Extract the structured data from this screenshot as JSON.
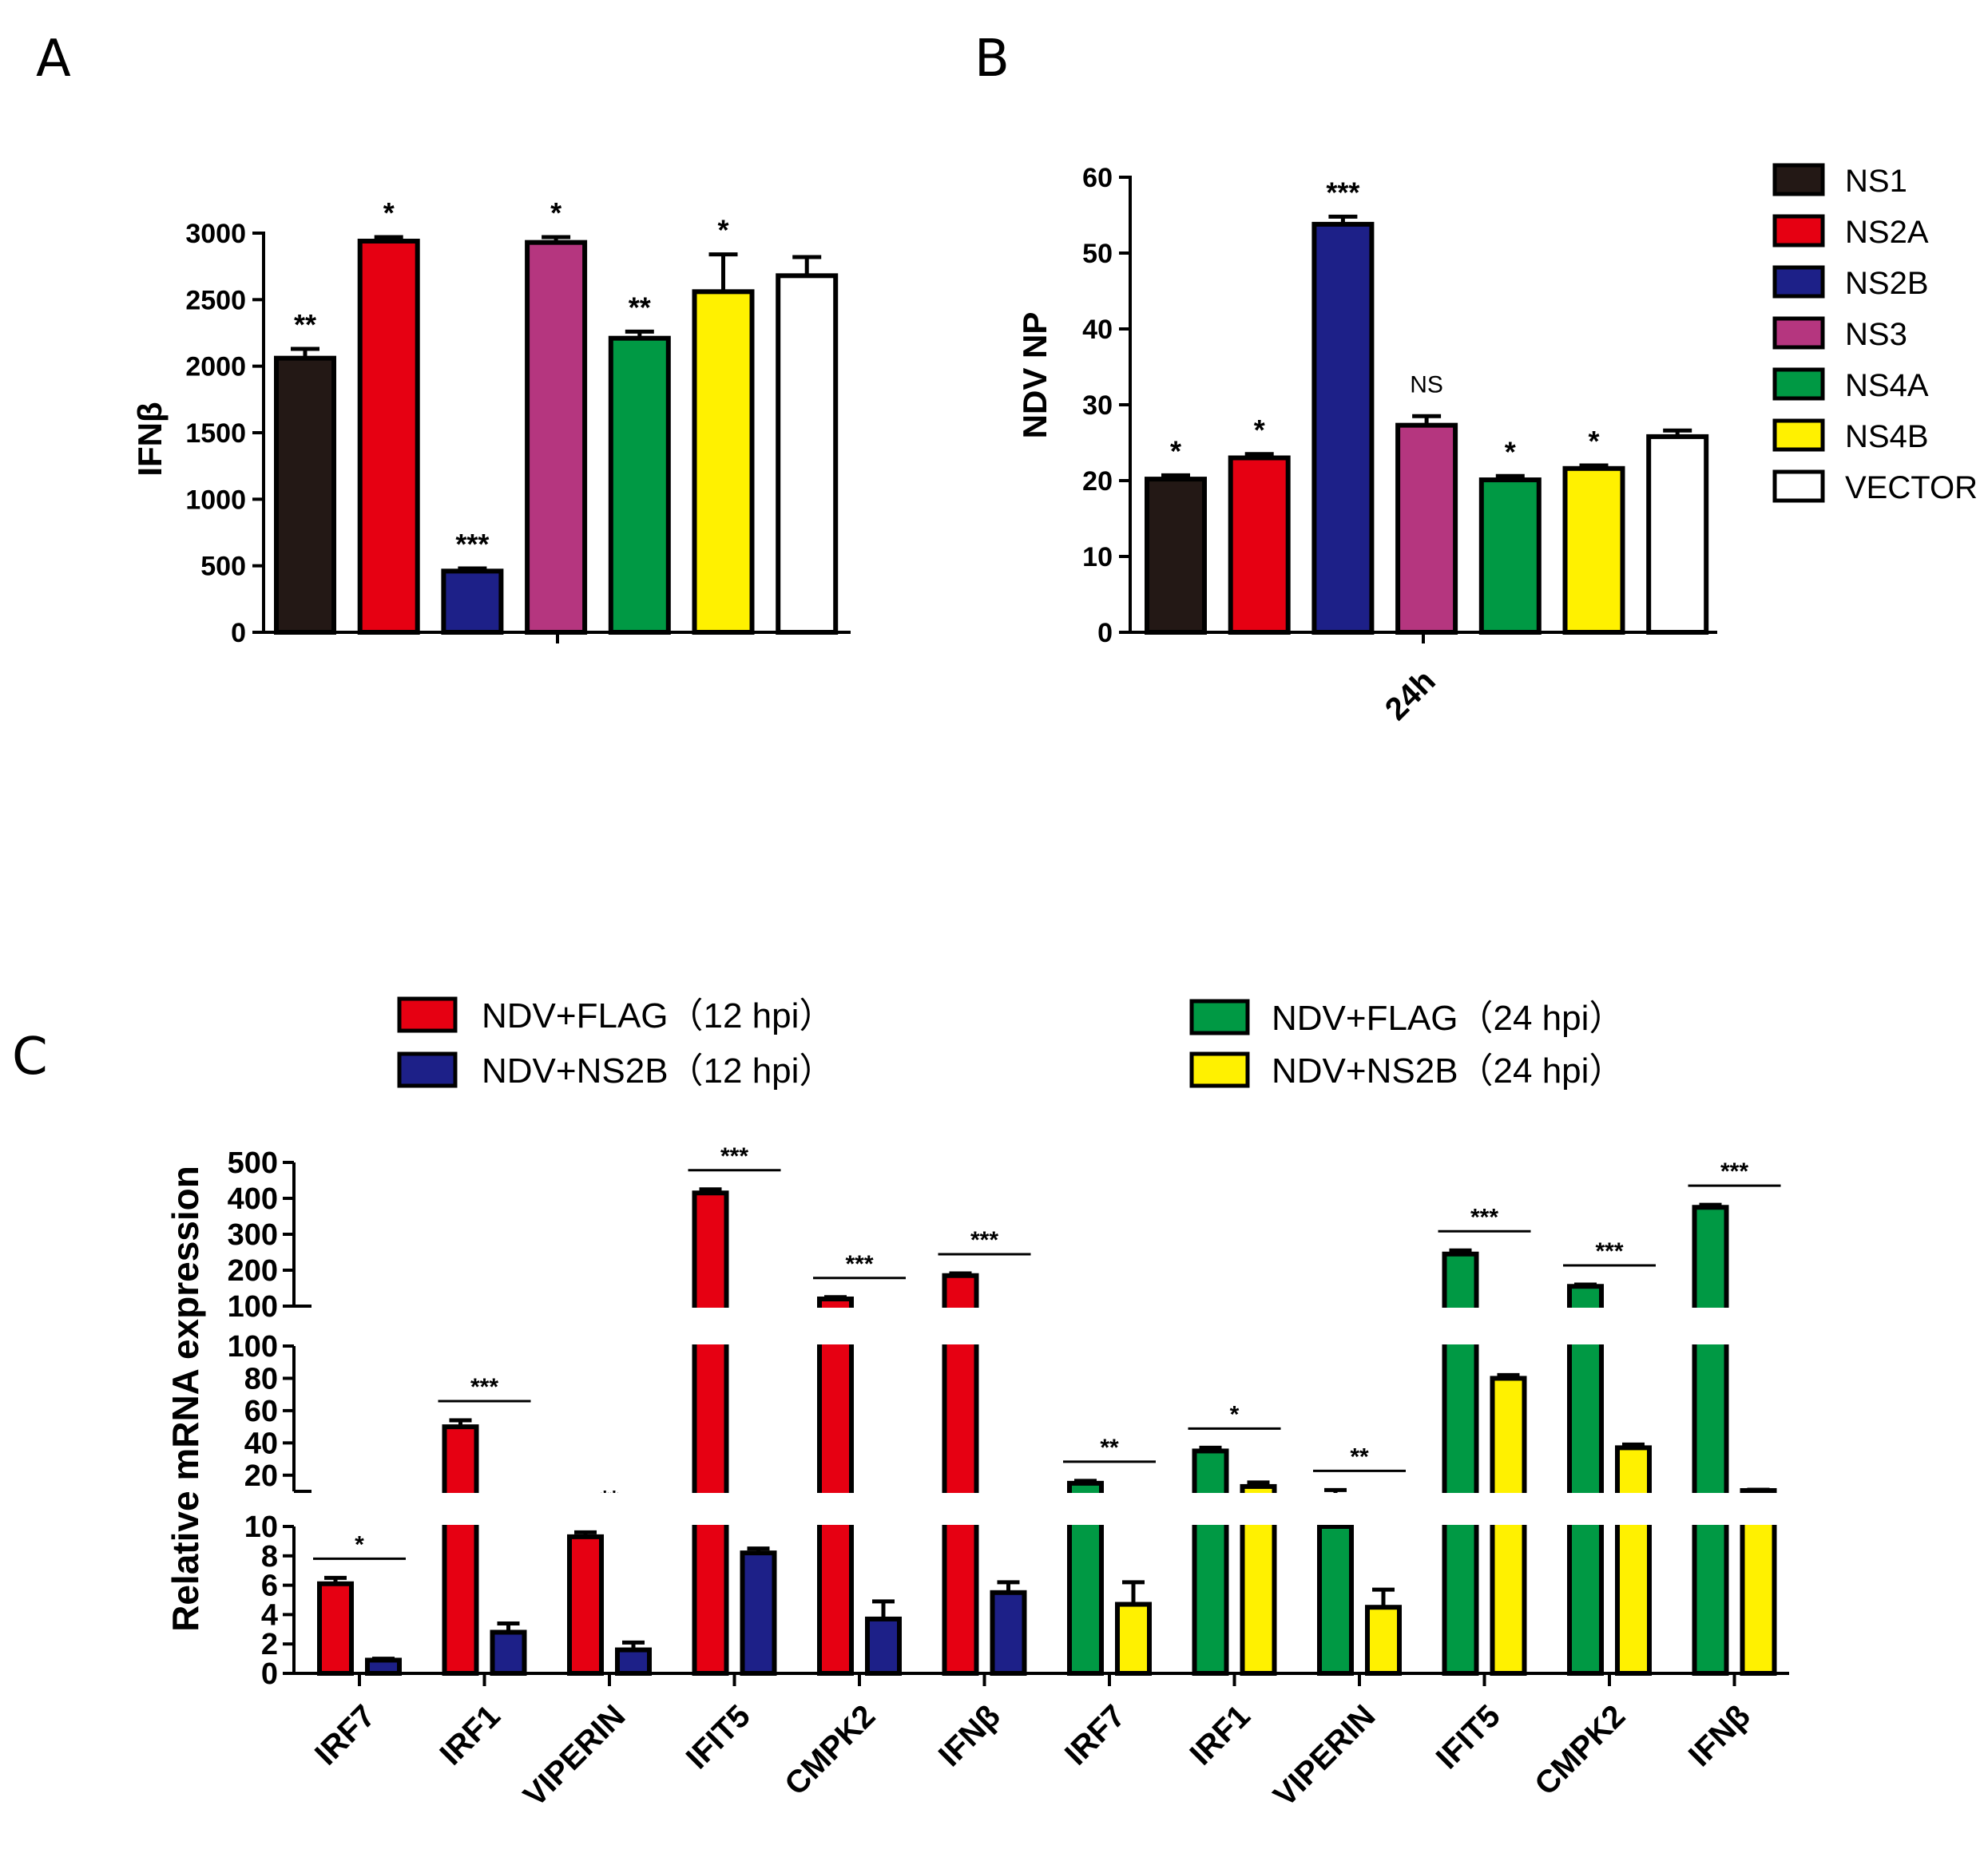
{
  "chart_data": [
    {
      "panel": "A",
      "type": "bar",
      "ylabel": "IFNβ",
      "ylim": [
        0,
        3000
      ],
      "yticks": [
        0,
        500,
        1000,
        1500,
        2000,
        2500,
        3000
      ],
      "categories": [
        "NS1",
        "NS2A",
        "NS2B",
        "NS3",
        "NS4A",
        "NS4B",
        "VECTOR"
      ],
      "values": [
        2060,
        2940,
        460,
        2930,
        2210,
        2560,
        2680
      ],
      "errors": [
        70,
        30,
        20,
        40,
        50,
        280,
        140
      ],
      "significance": [
        "**",
        "*",
        "***",
        "*",
        "**",
        "*",
        ""
      ]
    },
    {
      "panel": "B",
      "type": "bar",
      "ylabel": "NDV NP",
      "xlabel": "24h",
      "ylim": [
        0,
        60
      ],
      "yticks": [
        0,
        10,
        20,
        30,
        40,
        50,
        60
      ],
      "categories": [
        "NS1",
        "NS2A",
        "NS2B",
        "NS3",
        "NS4A",
        "NS4B",
        "VECTOR"
      ],
      "values": [
        20.2,
        23.0,
        53.8,
        27.3,
        20.1,
        21.6,
        25.8
      ],
      "errors": [
        0.5,
        0.5,
        1.0,
        1.2,
        0.5,
        0.4,
        0.8
      ],
      "significance": [
        "*",
        "*",
        "***",
        "NS",
        "*",
        "*",
        ""
      ]
    },
    {
      "panel": "C",
      "type": "bar",
      "ylabel": "Relative mRNA expression",
      "y_segments": [
        {
          "range": [
            0,
            10
          ],
          "ticks": [
            0,
            2,
            4,
            6,
            8,
            10
          ]
        },
        {
          "range": [
            10,
            100
          ],
          "ticks": [
            20,
            40,
            60,
            80,
            100
          ]
        },
        {
          "range": [
            100,
            500
          ],
          "ticks": [
            100,
            200,
            300,
            400,
            500
          ]
        }
      ],
      "categories": [
        "IRF7",
        "IRF1",
        "VIPERIN",
        "IFIT5",
        "CMPK2",
        "IFNβ",
        "IRF7",
        "IRF1",
        "VIPERIN",
        "IFIT5",
        "CMPK2",
        "IFNβ"
      ],
      "series": [
        {
          "name": "NDV+FLAG（12 hpi）",
          "values": [
            6.1,
            50,
            9.3,
            415,
            120,
            185,
            null,
            null,
            null,
            null,
            null,
            null
          ],
          "errors": [
            0.4,
            4,
            0.3,
            10,
            5,
            6,
            null,
            null,
            null,
            null,
            null,
            null
          ]
        },
        {
          "name": "NDV+NS2B（12 hpi）",
          "values": [
            0.9,
            2.8,
            1.6,
            8.2,
            3.7,
            5.5,
            null,
            null,
            null,
            null,
            null,
            null
          ],
          "errors": [
            0.1,
            0.6,
            0.5,
            0.3,
            1.2,
            0.7,
            null,
            null,
            null,
            null,
            null,
            null
          ]
        },
        {
          "name": "NDV+FLAG（24 hpi）",
          "values": [
            null,
            null,
            null,
            null,
            null,
            null,
            15,
            35,
            10,
            245,
            155,
            375
          ],
          "errors": [
            null,
            null,
            null,
            null,
            null,
            null,
            1.5,
            2,
            0.8,
            10,
            5,
            7
          ]
        },
        {
          "name": "NDV+NS2B（24 hpi）",
          "values": [
            null,
            null,
            null,
            null,
            null,
            null,
            4.7,
            13,
            4.5,
            80,
            37,
            10.5
          ],
          "errors": [
            null,
            null,
            null,
            null,
            null,
            null,
            1.5,
            2.5,
            1.2,
            2,
            2,
            0.5
          ]
        }
      ],
      "significance": [
        "*",
        "***",
        "**",
        "***",
        "***",
        "***",
        "**",
        "*",
        "**",
        "***",
        "***",
        "***"
      ]
    }
  ],
  "panels": {
    "a": "A",
    "b": "B",
    "c": "C"
  },
  "legend": {
    "entries": [
      "NS1",
      "NS2A",
      "NS2B",
      "NS3",
      "NS4A",
      "NS4B",
      "VECTOR"
    ],
    "colors": [
      "#231815",
      "#e60012",
      "#1d2088",
      "#b5367f",
      "#009944",
      "#fff100",
      "#ffffff"
    ]
  },
  "legendC": {
    "entries": [
      "NDV+FLAG（12 hpi）",
      "NDV+NS2B（12 hpi）",
      "NDV+FLAG（24 hpi）",
      "NDV+NS2B（24 hpi）"
    ],
    "colors": [
      "#e60012",
      "#1d2088",
      "#009944",
      "#fff100"
    ]
  }
}
